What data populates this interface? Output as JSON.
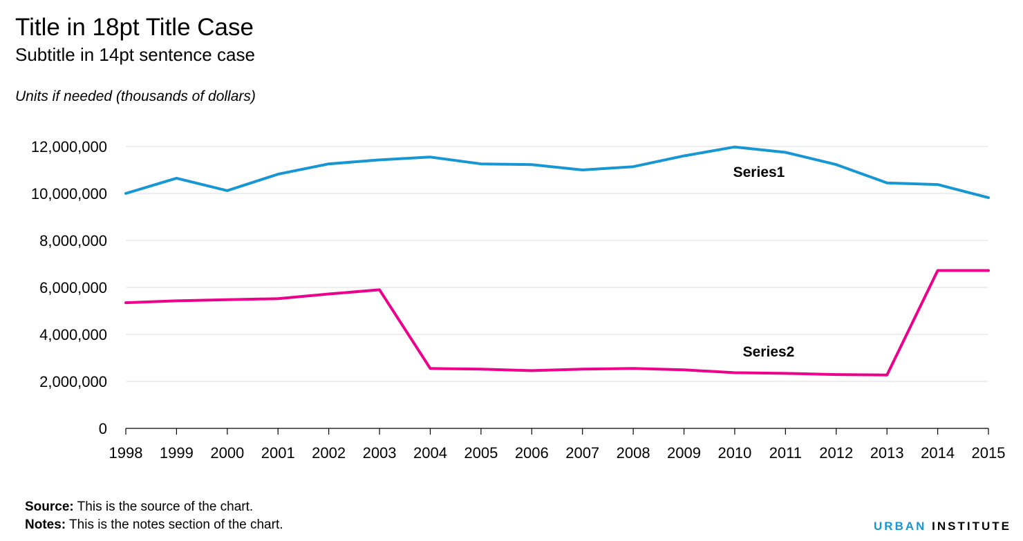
{
  "chart_data": {
    "type": "line",
    "title": "Title in 18pt Title Case",
    "subtitle": "Subtitle in 14pt sentence case",
    "units": "Units if needed (thousands of dollars)",
    "x": [
      "1998",
      "1999",
      "2000",
      "2001",
      "2002",
      "2003",
      "2004",
      "2005",
      "2006",
      "2007",
      "2008",
      "2009",
      "2010",
      "2011",
      "2012",
      "2013",
      "2014",
      "2015"
    ],
    "ylim": [
      0,
      12000000
    ],
    "yticks": [
      "0",
      "2,000,000",
      "4,000,000",
      "6,000,000",
      "8,000,000",
      "10,000,000",
      "12,000,000"
    ],
    "ytick_values": [
      0,
      2000000,
      4000000,
      6000000,
      8000000,
      10000000,
      12000000
    ],
    "grid": true,
    "series": [
      {
        "name": "Series1",
        "color": "#1696d2",
        "values": [
          10000000,
          10650000,
          10120000,
          10820000,
          11260000,
          11430000,
          11550000,
          11260000,
          11230000,
          11000000,
          11140000,
          11600000,
          11980000,
          11750000,
          11230000,
          10450000,
          10380000,
          9820000
        ]
      },
      {
        "name": "Series2",
        "color": "#ec008b",
        "values": [
          5350000,
          5430000,
          5480000,
          5520000,
          5720000,
          5900000,
          2550000,
          2520000,
          2460000,
          2520000,
          2550000,
          2490000,
          2370000,
          2340000,
          2290000,
          2270000,
          6720000,
          6720000
        ]
      }
    ]
  },
  "footer": {
    "source_label": "Source:",
    "source_text": " This is the source of the chart.",
    "notes_label": "Notes:",
    "notes_text": " This is the notes section of the chart.",
    "brand": "URBAN INSTITUTE",
    "brand_word1": "URBAN",
    "brand_word2": "INSTITUTE",
    "brand_color": "#1696d2"
  }
}
